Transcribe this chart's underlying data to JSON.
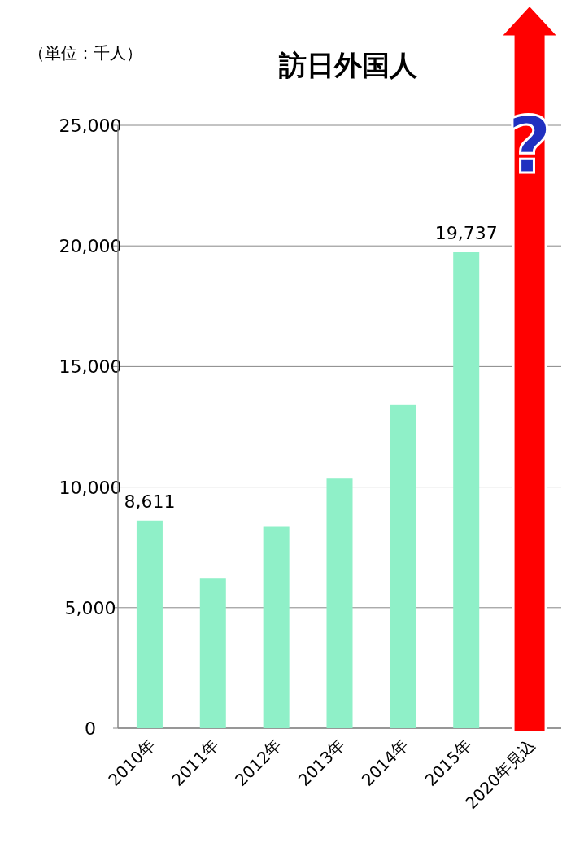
{
  "chart_data": {
    "type": "bar",
    "title": "訪日外国人",
    "ylabel": "（単位：千人）",
    "categories": [
      "2010年",
      "2011年",
      "2012年",
      "2013年",
      "2014年",
      "2015年",
      "2020年見込"
    ],
    "values": [
      8611,
      6200,
      8350,
      10350,
      13400,
      19737,
      null
    ],
    "value_labels": [
      "8,611",
      null,
      null,
      null,
      null,
      "19,737",
      null
    ],
    "color": "#8ff0c8",
    "ylim": [
      0,
      25000
    ],
    "yticks": [
      {
        "value": 0,
        "label": "0"
      },
      {
        "value": 5000,
        "label": "5,000"
      },
      {
        "value": 10000,
        "label": "10,000"
      },
      {
        "value": 15000,
        "label": "15,000"
      },
      {
        "value": 20000,
        "label": "20,000"
      },
      {
        "value": 25000,
        "label": "25,000"
      }
    ],
    "grid": "y",
    "annotations": [
      "?"
    ]
  }
}
